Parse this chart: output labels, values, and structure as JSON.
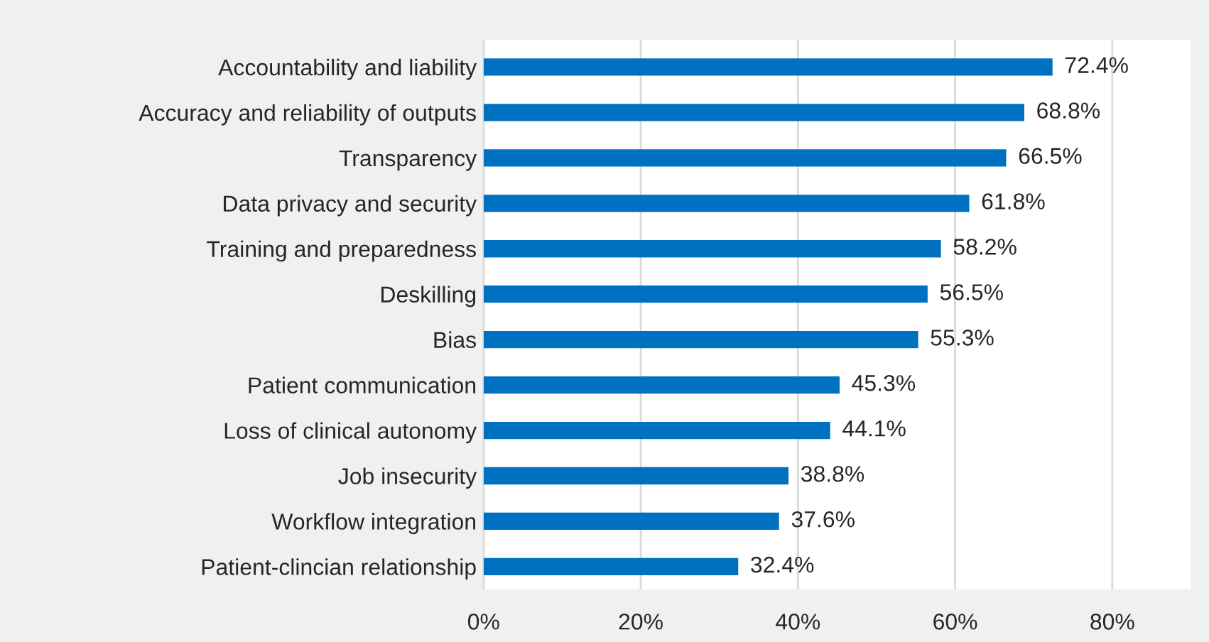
{
  "chart_data": {
    "type": "bar",
    "orientation": "horizontal",
    "categories": [
      "Accountability and liability",
      "Accuracy and reliability of outputs",
      "Transparency",
      "Data privacy and security",
      "Training and preparedness",
      "Deskilling",
      "Bias",
      "Patient communication",
      "Loss of clinical autonomy",
      "Job insecurity",
      "Workflow integration",
      "Patient-clincian relationship"
    ],
    "values": [
      72.4,
      68.8,
      66.5,
      61.8,
      58.2,
      56.5,
      55.3,
      45.3,
      44.1,
      38.8,
      37.6,
      32.4
    ],
    "value_labels": [
      "72.4%",
      "68.8%",
      "66.5%",
      "61.8%",
      "58.2%",
      "56.5%",
      "55.3%",
      "45.3%",
      "44.1%",
      "38.8%",
      "37.6%",
      "32.4%"
    ],
    "color": "#0070c0",
    "xlim": [
      0,
      90
    ],
    "xticks": [
      {
        "value": 0,
        "label": "0%"
      },
      {
        "value": 20,
        "label": "20%"
      },
      {
        "value": 40,
        "label": "40%"
      },
      {
        "value": 60,
        "label": "60%"
      },
      {
        "value": 80,
        "label": "80%"
      }
    ],
    "grid": "x",
    "legend": false
  }
}
